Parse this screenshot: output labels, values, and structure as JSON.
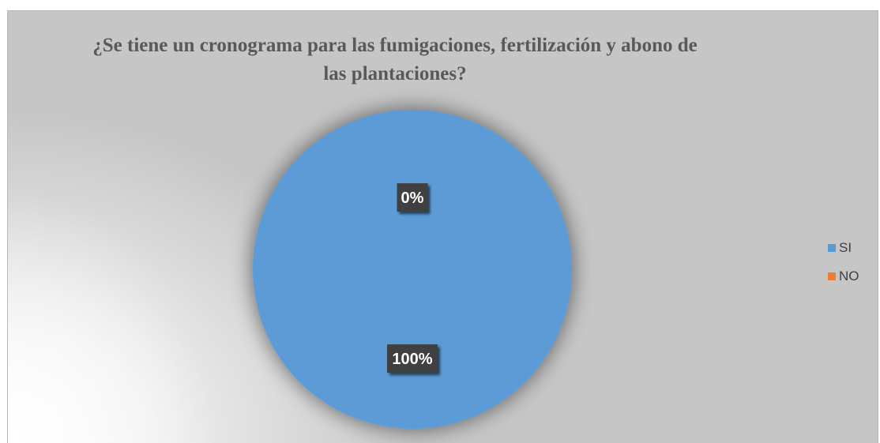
{
  "chart_data": {
    "type": "pie",
    "title": "¿Se tiene un cronograma para las fumigaciones, fertilización y abono de las plantaciones?",
    "categories": [
      "SI",
      "NO"
    ],
    "values": [
      100,
      0
    ],
    "data_labels": [
      "100%",
      "0%"
    ],
    "colors": [
      "#5b9bd5",
      "#ed7d31"
    ],
    "legend_position": "right"
  }
}
